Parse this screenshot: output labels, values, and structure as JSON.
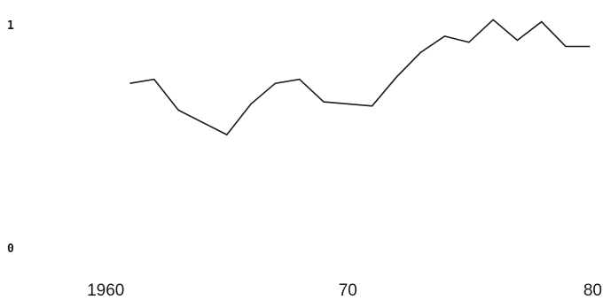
{
  "chart_data": {
    "type": "line",
    "title": "",
    "xlabel": "",
    "ylabel": "",
    "xlim": [
      1956,
      1980.5
    ],
    "ylim": [
      0,
      1
    ],
    "grid": false,
    "x_ticks": [
      {
        "value": 1960,
        "label": "1960"
      },
      {
        "value": 1970,
        "label": "70"
      },
      {
        "value": 1980,
        "label": "80"
      }
    ],
    "y_ticks": [
      {
        "value": 0,
        "label": "0"
      },
      {
        "value": 1,
        "label": "1"
      }
    ],
    "series": [
      {
        "color": "#1a1a1a",
        "x": [
          1961,
          1962,
          1963,
          1964,
          1965,
          1966,
          1967,
          1968,
          1969,
          1970,
          1971,
          1972,
          1973,
          1974,
          1975,
          1976,
          1977,
          1978,
          1979,
          1980
        ],
        "y": [
          0.68,
          0.7,
          0.55,
          0.49,
          0.43,
          0.58,
          0.68,
          0.7,
          0.59,
          0.58,
          0.57,
          0.71,
          0.83,
          0.91,
          0.88,
          0.99,
          0.89,
          0.98,
          0.86,
          0.86
        ]
      }
    ]
  }
}
